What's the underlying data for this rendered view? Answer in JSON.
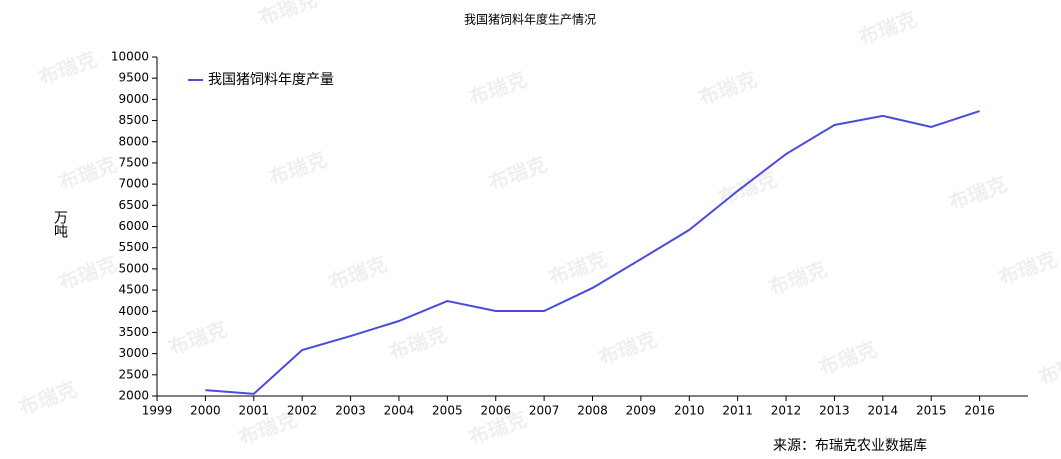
{
  "chart_data": {
    "type": "line",
    "title": "我国猪饲料年度生产情况",
    "y_label": "万吨",
    "source": "来源：布瑞克农业数据库",
    "watermark": "布瑞克",
    "x": [
      2000,
      2001,
      2002,
      2003,
      2004,
      2005,
      2006,
      2007,
      2008,
      2009,
      2010,
      2011,
      2012,
      2013,
      2014,
      2015,
      2016
    ],
    "series": [
      {
        "name": "我国猪饲料年度产量",
        "color": "#4b4bdc",
        "values": [
          2140,
          2050,
          3085,
          3415,
          3770,
          4240,
          4005,
          4005,
          4550,
          5230,
          5920,
          6840,
          7710,
          8395,
          8610,
          8350,
          8725
        ]
      }
    ],
    "xlim": [
      1999,
      2017
    ],
    "xticks": [
      1999,
      2000,
      2001,
      2002,
      2003,
      2004,
      2005,
      2006,
      2007,
      2008,
      2009,
      2010,
      2011,
      2012,
      2013,
      2014,
      2015,
      2016
    ],
    "ylim": [
      2000,
      10000
    ],
    "yticks": [
      2000,
      2500,
      3000,
      3500,
      4000,
      4500,
      5000,
      5500,
      6000,
      6500,
      7000,
      7500,
      8000,
      8500,
      9000,
      9500,
      10000
    ],
    "grid": false,
    "legend": "top-left"
  }
}
